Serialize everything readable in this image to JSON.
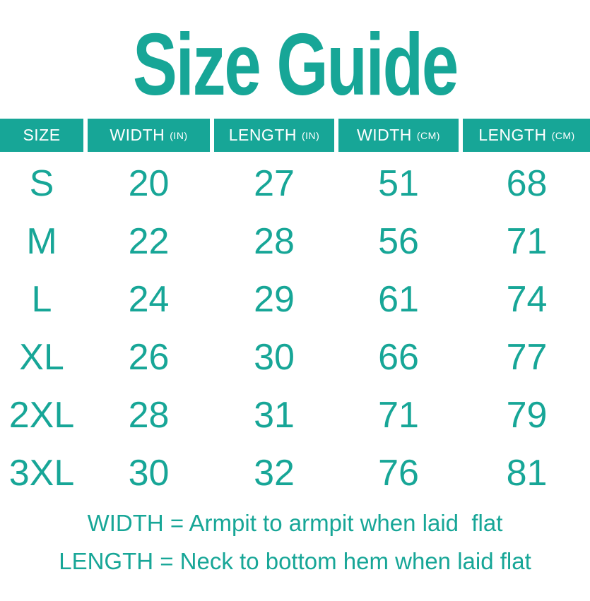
{
  "title": "Size Guide",
  "colors": {
    "accent": "#17A697",
    "header_text": "#FFFFFF",
    "background": "#FFFFFF"
  },
  "table": {
    "headers": [
      {
        "label": "SIZE",
        "unit": ""
      },
      {
        "label": "WIDTH",
        "unit": "(IN)"
      },
      {
        "label": "LENGTH",
        "unit": "(IN)"
      },
      {
        "label": "WIDTH",
        "unit": "(CM)"
      },
      {
        "label": "LENGTH",
        "unit": "(CM)"
      }
    ],
    "rows": [
      {
        "size": "S",
        "width_in": "20",
        "length_in": "27",
        "width_cm": "51",
        "length_cm": "68"
      },
      {
        "size": "M",
        "width_in": "22",
        "length_in": "28",
        "width_cm": "56",
        "length_cm": "71"
      },
      {
        "size": "L",
        "width_in": "24",
        "length_in": "29",
        "width_cm": "61",
        "length_cm": "74"
      },
      {
        "size": "XL",
        "width_in": "26",
        "length_in": "30",
        "width_cm": "66",
        "length_cm": "77"
      },
      {
        "size": "2XL",
        "width_in": "28",
        "length_in": "31",
        "width_cm": "71",
        "length_cm": "79"
      },
      {
        "size": "3XL",
        "width_in": "30",
        "length_in": "32",
        "width_cm": "76",
        "length_cm": "81"
      }
    ]
  },
  "footnotes": {
    "width_note": "WIDTH = Armpit to armpit when laid  flat",
    "length_note": "LENGTH = Neck to bottom hem when laid flat"
  },
  "chart_data": {
    "type": "table",
    "title": "Size Guide",
    "columns": [
      "SIZE",
      "WIDTH (IN)",
      "LENGTH (IN)",
      "WIDTH (CM)",
      "LENGTH (CM)"
    ],
    "rows": [
      [
        "S",
        20,
        27,
        51,
        68
      ],
      [
        "M",
        22,
        28,
        56,
        71
      ],
      [
        "L",
        24,
        29,
        61,
        74
      ],
      [
        "XL",
        26,
        30,
        66,
        77
      ],
      [
        "2XL",
        28,
        31,
        71,
        79
      ],
      [
        "3XL",
        30,
        32,
        76,
        81
      ]
    ],
    "notes": [
      "WIDTH = Armpit to armpit when laid  flat",
      "LENGTH = Neck to bottom hem when laid flat"
    ],
    "layout": {
      "header_background": "#17A697",
      "header_text_color": "#FFFFFF",
      "body_text_color": "#17A697",
      "grid": "off"
    }
  }
}
